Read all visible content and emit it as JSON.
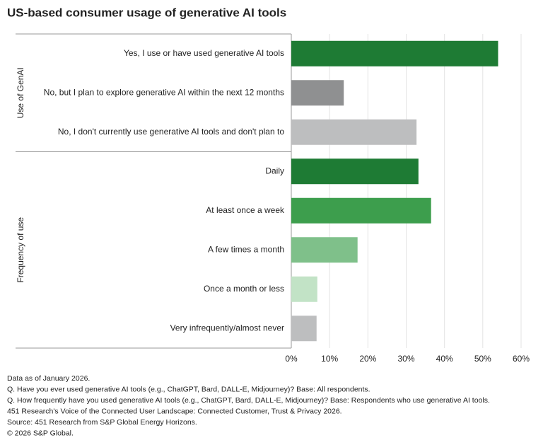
{
  "chart_data": {
    "type": "bar",
    "title": "US-based consumer usage of generative AI tools",
    "groups": [
      {
        "label": "Use of GenAI",
        "categories": [
          "Yes, I use or have used generative AI tools",
          "No, but I plan to explore generative AI within the next 12 months",
          "No, I don't currently use generative AI tools and don't plan to"
        ],
        "values": [
          54,
          13.7,
          32.7
        ],
        "colors": [
          "#1e7b34",
          "#8f9091",
          "#bdbebf"
        ]
      },
      {
        "label": "Frequency of use",
        "categories": [
          "Daily",
          "At least once a week",
          "A few times a month",
          "Once a month or less",
          "Very infrequently/almost never"
        ],
        "values": [
          33.2,
          36.5,
          17.3,
          6.8,
          6.6
        ],
        "colors": [
          "#1e7b34",
          "#3d9e4d",
          "#7fc08a",
          "#c2e3c6",
          "#bdbebf"
        ]
      }
    ],
    "xlim": [
      0,
      60
    ],
    "xticks": [
      {
        "value": 0,
        "label": "0%"
      },
      {
        "value": 10,
        "label": "10%"
      },
      {
        "value": 20,
        "label": "20%"
      },
      {
        "value": 30,
        "label": "30%"
      },
      {
        "value": 40,
        "label": "40%"
      },
      {
        "value": 50,
        "label": "50%"
      },
      {
        "value": 60,
        "label": "60%"
      }
    ],
    "grid": true,
    "notes": [
      "Data as of January 2026.",
      "Q. Have you ever used generative AI tools (e.g., ChatGPT, Bard, DALL-E, Midjourney)? Base: All respondents.",
      "Q. How frequently have you used generative AI tools (e.g., ChatGPT, Bard, DALL-E, Midjourney)? Base: Respondents who use generative AI tools.",
      "451 Research's Voice of the Connected User Landscape: Connected Customer, Trust & Privacy 2026.",
      "Source: 451 Research from S&P Global Energy Horizons.",
      "© 2026 S&P Global."
    ]
  }
}
